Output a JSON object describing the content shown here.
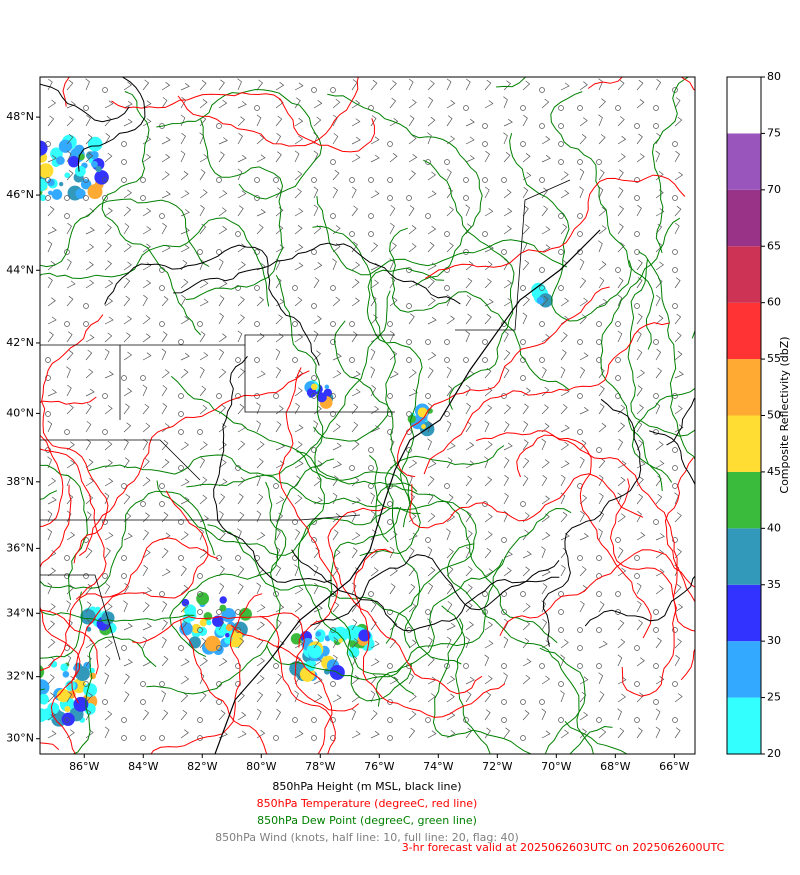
{
  "map": {
    "lon_lim": [
      -87.5,
      -65.3
    ],
    "lat_lim": [
      29.5,
      49
    ],
    "lon_ticks": [
      {
        "value": -86,
        "label": "86°W"
      },
      {
        "value": -84,
        "label": "84°W"
      },
      {
        "value": -82,
        "label": "82°W"
      },
      {
        "value": -80,
        "label": "80°W"
      },
      {
        "value": -78,
        "label": "78°W"
      },
      {
        "value": -76,
        "label": "76°W"
      },
      {
        "value": -74,
        "label": "74°W"
      },
      {
        "value": -72,
        "label": "72°W"
      },
      {
        "value": -70,
        "label": "70°W"
      },
      {
        "value": -68,
        "label": "68°W"
      },
      {
        "value": -66,
        "label": "66°W"
      }
    ],
    "lat_ticks": [
      {
        "value": 48,
        "label": "48°N"
      },
      {
        "value": 46,
        "label": "46°N"
      },
      {
        "value": 44,
        "label": "44°N"
      },
      {
        "value": 42,
        "label": "42°N"
      },
      {
        "value": 40,
        "label": "40°N"
      },
      {
        "value": 38,
        "label": "38°N"
      },
      {
        "value": 36,
        "label": "36°N"
      },
      {
        "value": 34,
        "label": "34°N"
      },
      {
        "value": 32,
        "label": "32°N"
      },
      {
        "value": 30,
        "label": "30°N"
      }
    ]
  },
  "colorbar": {
    "label": "Composite Reflectivity (dbZ)",
    "lim": [
      20,
      80
    ],
    "ticks": [
      20,
      25,
      30,
      35,
      40,
      45,
      50,
      55,
      60,
      65,
      70,
      75,
      80
    ],
    "colors": [
      "#33ffff",
      "#33aaff",
      "#3333ff",
      "#3399bb",
      "#3bbb3b",
      "#ffdd33",
      "#ffaa33",
      "#ff3333",
      "#cc3355",
      "#993388",
      "#9955bb",
      "#ffffff"
    ]
  },
  "captions": [
    {
      "text": "850hPa Height (m MSL, black line)",
      "color": "#000000"
    },
    {
      "text": "850hPa Temperature (degreeC, red line)",
      "color": "#ff0000"
    },
    {
      "text": "850hPa Dew Point (degreeC, green line)",
      "color": "#008000"
    },
    {
      "text": "850hPa Wind (knots, half line: 10, full line: 20, flag: 40)",
      "color": "#808080"
    }
  ],
  "forecast": {
    "text": "3-hr forecast valid at 2025062603UTC on 2025062600UTC",
    "color": "#ff0000"
  }
}
